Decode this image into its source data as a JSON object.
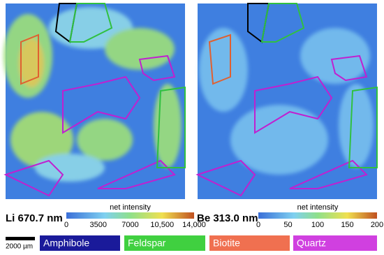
{
  "panels": [
    {
      "label": "Li 670.7 nm",
      "colorbar_title": "net intensity",
      "ticks": [
        "0",
        "3500",
        "7000",
        "10,500",
        "14,000"
      ]
    },
    {
      "label": "Be 313.0 nm",
      "colorbar_title": "net intensity",
      "ticks": [
        "0",
        "50",
        "100",
        "150",
        "200"
      ]
    }
  ],
  "legend": {
    "scale_bar": "2000 µm",
    "minerals": [
      "Amphibole",
      "Feldspar",
      "Biotite",
      "Quartz"
    ]
  }
}
